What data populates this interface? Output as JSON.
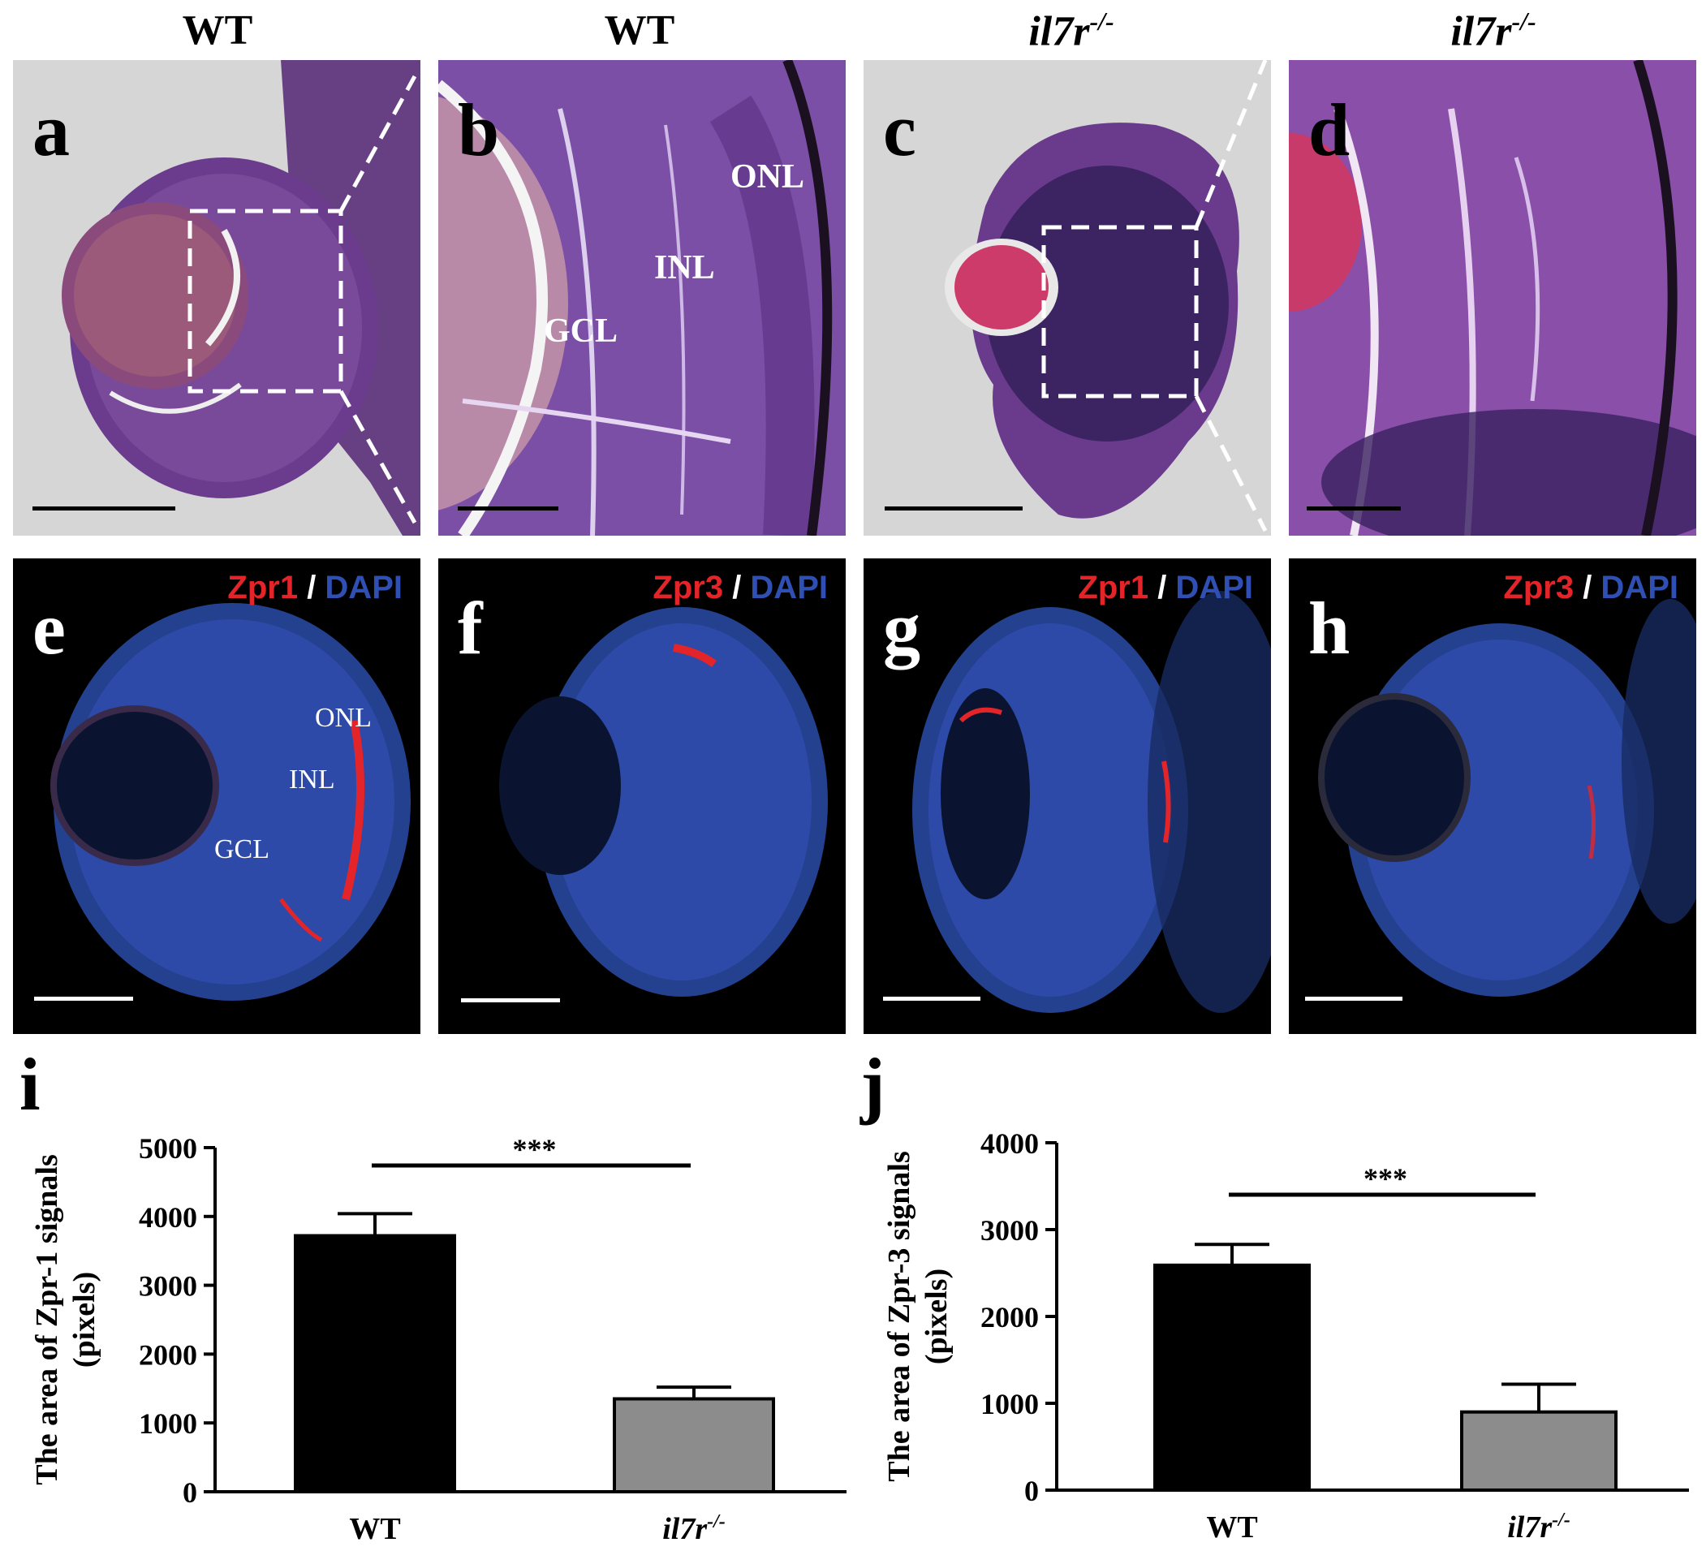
{
  "column_titles": [
    {
      "text": "WT",
      "italic": false,
      "sup": ""
    },
    {
      "text": "WT",
      "italic": false,
      "sup": ""
    },
    {
      "text": "il7r",
      "italic": true,
      "sup": "-/-"
    },
    {
      "text": "il7r",
      "italic": true,
      "sup": "-/-"
    }
  ],
  "he_panels": [
    {
      "label": "a",
      "layers": []
    },
    {
      "label": "b",
      "layers": [
        "ONL",
        "INL",
        "GCL"
      ]
    },
    {
      "label": "c",
      "layers": []
    },
    {
      "label": "d",
      "layers": []
    }
  ],
  "fl_panels": [
    {
      "label": "e",
      "marker": "Zpr1",
      "sep": " / ",
      "counter": "DAPI",
      "layers": [
        "ONL",
        "INL",
        "GCL"
      ]
    },
    {
      "label": "f",
      "marker": "Zpr3",
      "sep": " / ",
      "counter": "DAPI",
      "layers": []
    },
    {
      "label": "g",
      "marker": "Zpr1",
      "sep": " / ",
      "counter": "DAPI",
      "layers": []
    },
    {
      "label": "h",
      "marker": "Zpr3",
      "sep": " / ",
      "counter": "DAPI",
      "layers": []
    }
  ],
  "colors": {
    "he_bg": "#d8d8d8",
    "he_tissue": "#6a3a8c",
    "fl_bg": "#000000",
    "dapi": "#2d4aa8",
    "signal": "#e3252a",
    "bar_wt": "#000000",
    "bar_ko": "#8c8c8c"
  },
  "chart_data": [
    {
      "panel_label": "i",
      "type": "bar",
      "categories": [
        "WT",
        "il7r"
      ],
      "category_sup": [
        "",
        "-/-"
      ],
      "values": [
        3720,
        1350
      ],
      "errors": [
        320,
        170
      ],
      "ylabel_line1": "The area of Zpr-1 signals",
      "ylabel_line2": "(pixels)",
      "ylim": [
        0,
        5000
      ],
      "yticks": [
        "0",
        "1000",
        "2000",
        "3000",
        "4000",
        "5000"
      ],
      "significance": "***",
      "grid": false
    },
    {
      "panel_label": "j",
      "type": "bar",
      "categories": [
        "WT",
        "il7r"
      ],
      "category_sup": [
        "",
        "-/-"
      ],
      "values": [
        2590,
        900
      ],
      "errors": [
        240,
        320
      ],
      "ylabel_line1": "The area of Zpr-3 signals",
      "ylabel_line2": "(pixels)",
      "ylim": [
        0,
        4000
      ],
      "yticks": [
        "0",
        "1000",
        "2000",
        "3000",
        "4000"
      ],
      "significance": "***",
      "grid": false
    }
  ]
}
